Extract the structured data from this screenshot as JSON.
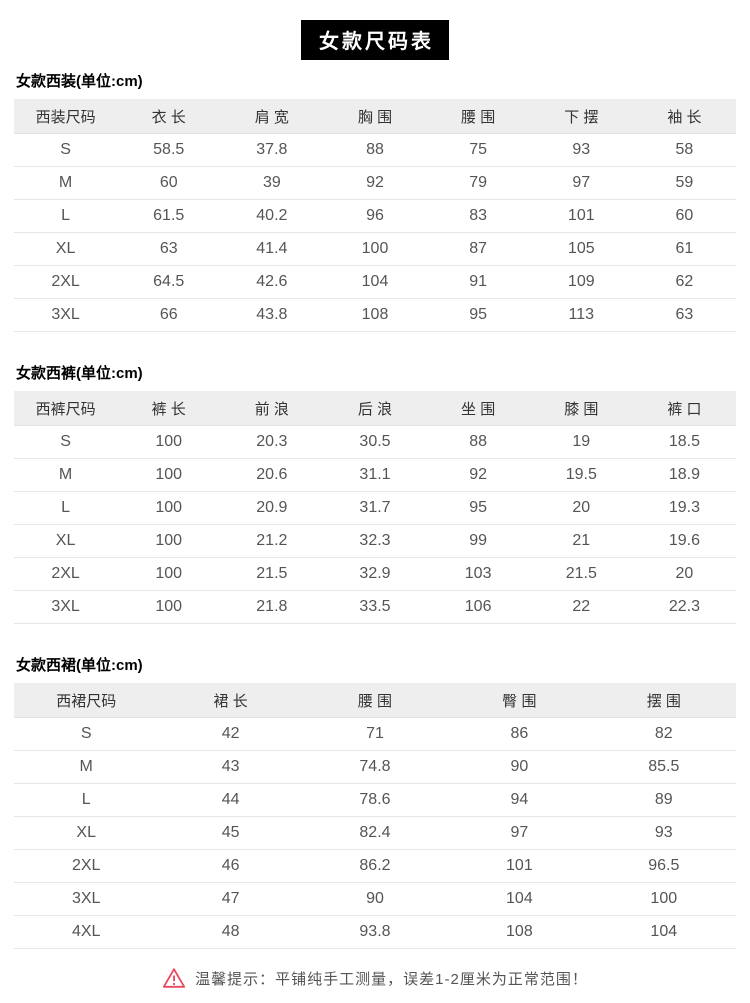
{
  "page_title": "女款尺码表",
  "colors": {
    "title_bg": "#000000",
    "title_text": "#ffffff",
    "header_bg": "#eeeeee",
    "row_border": "#e7e7e7",
    "warning_accent": "#e8495f"
  },
  "tables": [
    {
      "section_title": "女款西装(单位:cm)",
      "headers": [
        "西装尺码",
        "衣 长",
        "肩 宽",
        "胸 围",
        "腰 围",
        "下 摆",
        "袖 长"
      ],
      "rows": [
        [
          "S",
          "58.5",
          "37.8",
          "88",
          "75",
          "93",
          "58"
        ],
        [
          "M",
          "60",
          "39",
          "92",
          "79",
          "97",
          "59"
        ],
        [
          "L",
          "61.5",
          "40.2",
          "96",
          "83",
          "101",
          "60"
        ],
        [
          "XL",
          "63",
          "41.4",
          "100",
          "87",
          "105",
          "61"
        ],
        [
          "2XL",
          "64.5",
          "42.6",
          "104",
          "91",
          "109",
          "62"
        ],
        [
          "3XL",
          "66",
          "43.8",
          "108",
          "95",
          "113",
          "63"
        ]
      ]
    },
    {
      "section_title": "女款西裤(单位:cm)",
      "headers": [
        "西裤尺码",
        "裤 长",
        "前 浪",
        "后 浪",
        "坐 围",
        "膝 围",
        "裤 口"
      ],
      "rows": [
        [
          "S",
          "100",
          "20.3",
          "30.5",
          "88",
          "19",
          "18.5"
        ],
        [
          "M",
          "100",
          "20.6",
          "31.1",
          "92",
          "19.5",
          "18.9"
        ],
        [
          "L",
          "100",
          "20.9",
          "31.7",
          "95",
          "20",
          "19.3"
        ],
        [
          "XL",
          "100",
          "21.2",
          "32.3",
          "99",
          "21",
          "19.6"
        ],
        [
          "2XL",
          "100",
          "21.5",
          "32.9",
          "103",
          "21.5",
          "20"
        ],
        [
          "3XL",
          "100",
          "21.8",
          "33.5",
          "106",
          "22",
          "22.3"
        ]
      ]
    },
    {
      "section_title": "女款西裙(单位:cm)",
      "headers": [
        "西裙尺码",
        "裙 长",
        "腰 围",
        "臀 围",
        "摆 围"
      ],
      "rows": [
        [
          "S",
          "42",
          "71",
          "86",
          "82"
        ],
        [
          "M",
          "43",
          "74.8",
          "90",
          "85.5"
        ],
        [
          "L",
          "44",
          "78.6",
          "94",
          "89"
        ],
        [
          "XL",
          "45",
          "82.4",
          "97",
          "93"
        ],
        [
          "2XL",
          "46",
          "86.2",
          "101",
          "96.5"
        ],
        [
          "3XL",
          "47",
          "90",
          "104",
          "100"
        ],
        [
          "4XL",
          "48",
          "93.8",
          "108",
          "104"
        ]
      ]
    }
  ],
  "footer": {
    "tip_text": "温馨提示：平铺纯手工测量，误差1-2厘米为正常范围！"
  }
}
